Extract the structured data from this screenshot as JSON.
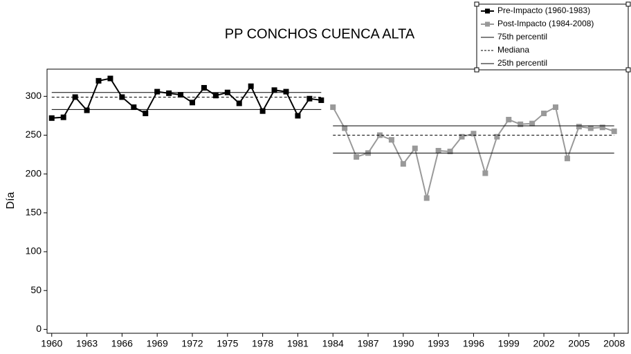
{
  "chart_data": {
    "type": "line",
    "title": "PP CONCHOS CUENCA ALTA",
    "y_label": "Día",
    "xlim": [
      1959.6,
      2009.2
    ],
    "xticks": [
      1960,
      1963,
      1966,
      1969,
      1972,
      1975,
      1978,
      1981,
      1984,
      1987,
      1990,
      1993,
      1996,
      1999,
      2002,
      2005,
      2008
    ],
    "ylim": [
      -5,
      335
    ],
    "yticks": [
      0,
      50,
      100,
      150,
      200,
      250,
      300
    ],
    "legend": "top-right",
    "series": [
      {
        "name": "Pre-Impacto (1960-1983)",
        "color": "#000000",
        "marker": "square",
        "style": "solid",
        "x": [
          1960,
          1961,
          1962,
          1963,
          1964,
          1965,
          1966,
          1967,
          1968,
          1969,
          1970,
          1971,
          1972,
          1973,
          1974,
          1975,
          1976,
          1977,
          1978,
          1979,
          1980,
          1981,
          1982,
          1983
        ],
        "values": [
          272,
          273,
          299,
          282,
          320,
          323,
          299,
          286,
          278,
          306,
          304,
          302,
          292,
          311,
          301,
          305,
          291,
          313,
          281,
          308,
          306,
          275,
          297,
          295
        ]
      },
      {
        "name": "Post-Impacto (1984-2008)",
        "color": "#999999",
        "marker": "square",
        "style": "solid",
        "x": [
          1984,
          1985,
          1986,
          1987,
          1988,
          1989,
          1990,
          1991,
          1992,
          1993,
          1994,
          1995,
          1996,
          1997,
          1998,
          1999,
          2000,
          2001,
          2002,
          2003,
          2004,
          2005,
          2006,
          2007,
          2008
        ],
        "values": [
          286,
          259,
          222,
          227,
          250,
          244,
          213,
          233,
          169,
          230,
          229,
          248,
          252,
          201,
          248,
          270,
          264,
          265,
          278,
          286,
          220,
          261,
          259,
          260,
          255
        ]
      },
      {
        "name": "75th percentil",
        "color": "#000000",
        "marker": "none",
        "style": "solid",
        "x": [
          1960,
          1983,
          null,
          1984,
          2008
        ],
        "values": [
          305,
          305,
          null,
          262,
          262
        ]
      },
      {
        "name": "Mediana",
        "color": "#000000",
        "marker": "none",
        "style": "dashed",
        "x": [
          1960,
          1983,
          null,
          1984,
          2008
        ],
        "values": [
          299,
          299,
          null,
          250,
          250
        ]
      },
      {
        "name": "25th percentil",
        "color": "#000000",
        "marker": "none",
        "style": "solid",
        "x": [
          1960,
          1983,
          null,
          1984,
          2008
        ],
        "values": [
          283,
          283,
          null,
          227,
          227
        ]
      }
    ]
  }
}
